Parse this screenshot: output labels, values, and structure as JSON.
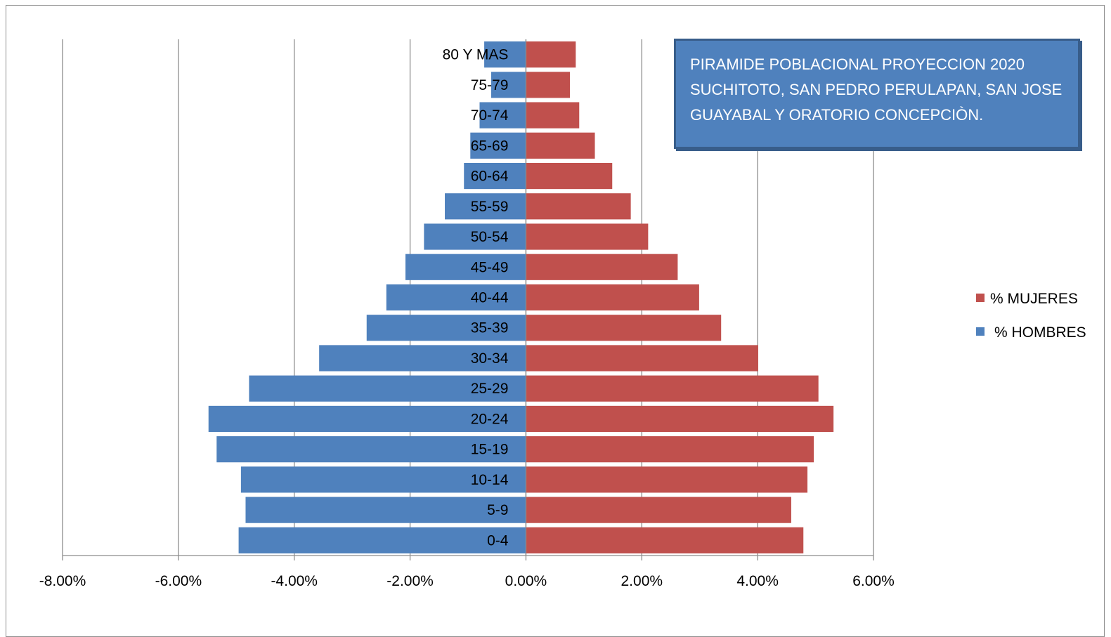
{
  "chart_data": {
    "type": "bar",
    "orientation": "horizontal",
    "title": "PIRAMIDE POBLACIONAL  PROYECCION 2020 SUCHITOTO, SAN PEDRO PERULAPAN, SAN JOSE GUAYABAL  Y ORATORIO CONCEPCIÒN.",
    "categories": [
      "0-4",
      "5-9",
      "10-14",
      "15-19",
      "20-24",
      "25-29",
      "30-34",
      "35-39",
      "40-44",
      "45-49",
      "50-54",
      "55-59",
      "60-64",
      "65-69",
      "70-74",
      "75-79",
      "80 Y MAS"
    ],
    "series": [
      {
        "name": "% MUJERES",
        "color": "#c0504d",
        "values": [
          4.79,
          4.58,
          4.86,
          4.97,
          5.31,
          5.05,
          4.01,
          3.37,
          2.99,
          2.62,
          2.11,
          1.81,
          1.49,
          1.19,
          0.92,
          0.76,
          0.86
        ]
      },
      {
        "name": "% HOMBRES",
        "color": "#4f81bd",
        "values": [
          -4.96,
          -4.84,
          -4.92,
          -5.34,
          -5.48,
          -4.78,
          -3.57,
          -2.75,
          -2.41,
          -2.08,
          -1.76,
          -1.4,
          -1.07,
          -0.96,
          -0.8,
          -0.6,
          -0.72
        ]
      }
    ],
    "xlim": [
      -8,
      6
    ],
    "x_ticks": [
      "-8.00%",
      "-6.00%",
      "-4.00%",
      "-2.00%",
      "0.00%",
      "2.00%",
      "4.00%",
      "6.00%"
    ],
    "grid": "vertical",
    "legend": "right"
  }
}
